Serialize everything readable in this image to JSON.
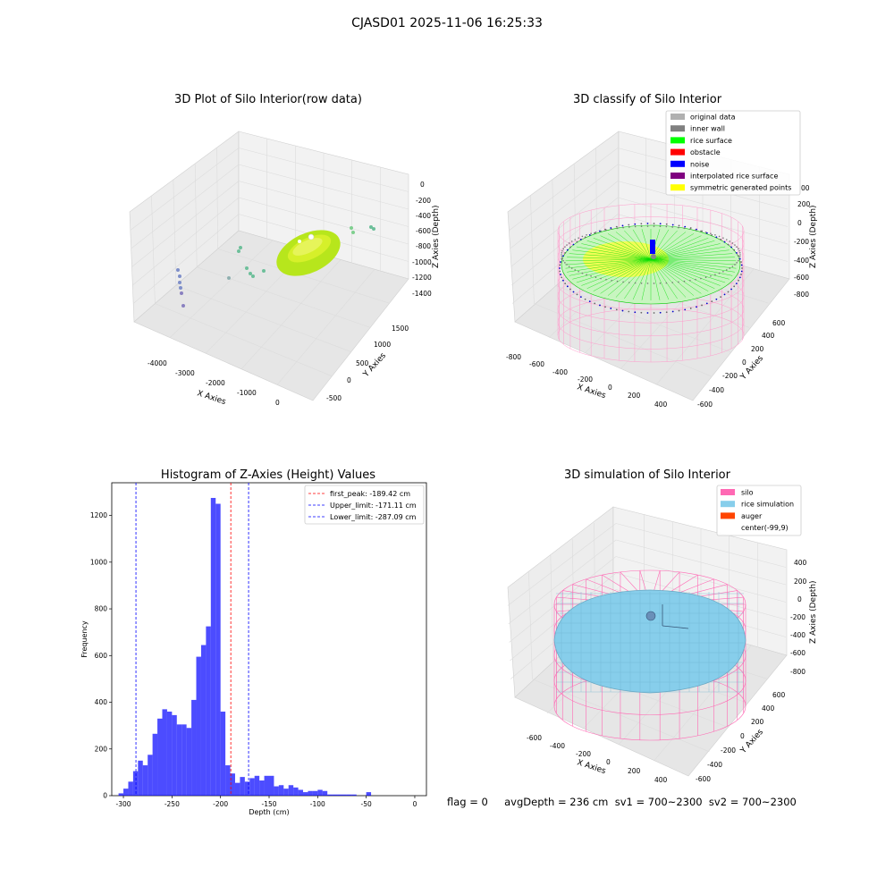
{
  "figure": {
    "title": "CJASD01 2025-11-06 16:25:33",
    "footer": "flag = 0     avgDepth = 236 cm  sv1 = 700~2300  sv2 = 700~2300"
  },
  "plot1": {
    "title": "3D Plot of Silo Interior(row data)",
    "xlabel": "X Axies",
    "ylabel": "Y Axies",
    "zlabel": "Z Axies (Depth)",
    "xticks": [
      "-4000",
      "-3000",
      "-2000",
      "-1000",
      "0"
    ],
    "yticks": [
      "-500",
      "0",
      "500",
      "1000",
      "1500"
    ],
    "zticks": [
      "0",
      "-200",
      "-400",
      "-600",
      "-800",
      "-1000",
      "-1200",
      "-1400"
    ]
  },
  "plot2": {
    "title": "3D classify of Silo Interior",
    "xlabel": "X Axies",
    "ylabel": "Y Axies",
    "zlabel": "Z Axies (Depth)",
    "xticks": [
      "-800",
      "-600",
      "-400",
      "-200",
      "0",
      "200",
      "400"
    ],
    "yticks": [
      "-600",
      "-400",
      "-200",
      "0",
      "200",
      "400",
      "600"
    ],
    "zticks": [
      "200",
      "0",
      "-200",
      "-400",
      "-600",
      "-800"
    ],
    "legend": [
      {
        "label": "original data",
        "color": "#b0b0b0"
      },
      {
        "label": "inner wall",
        "color": "#808080"
      },
      {
        "label": "rice surface",
        "color": "#00ff00"
      },
      {
        "label": "obstacle",
        "color": "#ff0000"
      },
      {
        "label": "noise",
        "color": "#0000ff"
      },
      {
        "label": "interpolated rice surface",
        "color": "#800080"
      },
      {
        "label": "symmetric generated points",
        "color": "#ffff00"
      }
    ],
    "extra_tick": "00"
  },
  "plot4": {
    "title": "3D simulation of Silo Interior",
    "xlabel": "X Axies",
    "ylabel": "Y Axies",
    "zlabel": "Z Axies (Depth)",
    "xticks": [
      "-600",
      "-400",
      "-200",
      "0",
      "200",
      "400"
    ],
    "yticks": [
      "-600",
      "-400",
      "-200",
      "0",
      "200",
      "400",
      "600"
    ],
    "zticks": [
      "400",
      "200",
      "0",
      "-200",
      "-400",
      "-600",
      "-800"
    ],
    "legend": [
      {
        "label": "silo",
        "color": "#ff69b4"
      },
      {
        "label": "rice simulation",
        "color": "#87ceeb"
      },
      {
        "label": "auger",
        "color": "#ff4500"
      },
      {
        "label": "center(-99,9)",
        "color": null
      }
    ]
  },
  "chart_data": {
    "type": "bar",
    "title": "Histogram of Z-Axies (Height) Values",
    "xlabel": "Depth (cm)",
    "ylabel": "Frequency",
    "xlim": [
      -312,
      12
    ],
    "ylim": [
      0,
      1340
    ],
    "xticks": [
      -300,
      -250,
      -200,
      -150,
      -100,
      -50,
      0
    ],
    "yticks": [
      0,
      200,
      400,
      600,
      800,
      1000,
      1200
    ],
    "bin_width": 5,
    "bin_starts": [
      -305,
      -300,
      -295,
      -290,
      -285,
      -280,
      -275,
      -270,
      -265,
      -260,
      -255,
      -250,
      -245,
      -240,
      -235,
      -230,
      -225,
      -220,
      -215,
      -210,
      -205,
      -200,
      -195,
      -190,
      -185,
      -180,
      -175,
      -170,
      -165,
      -160,
      -155,
      -150,
      -145,
      -140,
      -135,
      -130,
      -125,
      -120,
      -115,
      -110,
      -105,
      -100,
      -95,
      -90,
      -85,
      -80,
      -75,
      -70,
      -65,
      -60,
      -55,
      -50,
      -45,
      -40,
      -35,
      -30,
      -25,
      -20,
      -15,
      -10,
      -5,
      0
    ],
    "values": [
      10,
      30,
      60,
      105,
      150,
      130,
      175,
      265,
      330,
      370,
      360,
      345,
      305,
      305,
      290,
      410,
      595,
      645,
      725,
      1275,
      1250,
      360,
      130,
      95,
      55,
      80,
      60,
      75,
      85,
      65,
      85,
      85,
      40,
      45,
      30,
      45,
      35,
      25,
      15,
      20,
      20,
      25,
      20,
      5,
      5,
      5,
      5,
      5,
      5,
      0,
      0,
      15,
      0,
      0,
      0,
      0,
      0,
      0,
      0,
      0,
      0,
      0
    ],
    "color": "#0000ff",
    "lines": [
      {
        "label": "first_peak: -189.42 cm",
        "x": -189.42,
        "color": "#ff0000"
      },
      {
        "label": "Upper_limit: -171.11 cm",
        "x": -171.11,
        "color": "#0000ff"
      },
      {
        "label": "Lower_limit: -287.09 cm",
        "x": -287.09,
        "color": "#0000ff"
      }
    ],
    "legend_position": "top-right"
  }
}
